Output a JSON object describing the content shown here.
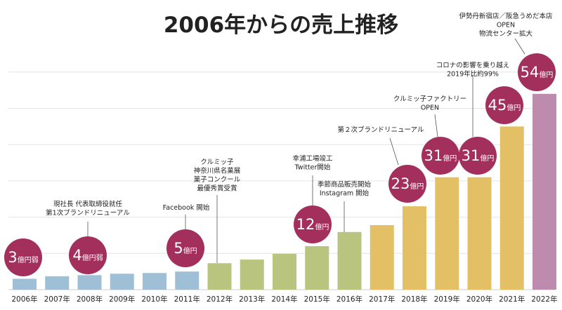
{
  "chart_data": {
    "type": "bar",
    "title": "2006年からの売上推移",
    "xlabel": "",
    "ylabel": "",
    "ylim": [
      0,
      60
    ],
    "grid": true,
    "categories": [
      "2006年",
      "2007年",
      "2008年",
      "2009年",
      "2010年",
      "2011年",
      "2012年",
      "2013年",
      "2014年",
      "2015年",
      "2016年",
      "2017年",
      "2018年",
      "2019年",
      "2020年",
      "2021年",
      "2022年"
    ],
    "values": [
      3,
      3.7,
      4,
      4.4,
      4.6,
      5,
      7.3,
      8.3,
      9.9,
      12,
      15.9,
      17.8,
      23,
      31,
      31,
      45,
      54
    ],
    "bar_colors": [
      "#9ebfd5",
      "#9ebfd5",
      "#9ebfd5",
      "#9ebfd5",
      "#9ebfd5",
      "#9ebfd5",
      "#b9c47f",
      "#b9c47f",
      "#b9c47f",
      "#b9c47f",
      "#b9c47f",
      "#e3c066",
      "#e3c066",
      "#e3c066",
      "#e3c066",
      "#e3c066",
      "#bd8bad"
    ],
    "badge_color": "#a32f5d",
    "badges": [
      {
        "index": 0,
        "num": "3",
        "unit": "億円弱"
      },
      {
        "index": 2,
        "num": "4",
        "unit": "億円弱"
      },
      {
        "index": 5,
        "num": "5",
        "unit": "億円"
      },
      {
        "index": 9,
        "num": "12",
        "unit": "億円"
      },
      {
        "index": 12,
        "num": "23",
        "unit": "億円"
      },
      {
        "index": 13,
        "num": "31",
        "unit": "億円"
      },
      {
        "index": 14,
        "num": "31",
        "unit": "億円"
      },
      {
        "index": 15,
        "num": "45",
        "unit": "億円"
      },
      {
        "index": 16,
        "num": "54",
        "unit": "億円"
      }
    ],
    "annotations": [
      {
        "index": 2,
        "lines": [
          "現社長 代表取締役就任",
          "第1次ブランドリニューアル"
        ]
      },
      {
        "index": 5,
        "lines": [
          "Facebook 開始"
        ]
      },
      {
        "index": 6,
        "lines": [
          "クルミッ子",
          "神奈川県名菓展",
          "菓子コンクール",
          "最優秀賞受賞"
        ]
      },
      {
        "index": 9,
        "lines": [
          "幸浦工場竣工",
          "Twitter開始"
        ]
      },
      {
        "index": 10,
        "lines": [
          "季節商品販売開始",
          "Instagram 開始"
        ]
      },
      {
        "index": 12,
        "lines": [
          "第２次ブランドリニューアル"
        ]
      },
      {
        "index": 13,
        "lines": [
          "クルミッ子ファクトリー",
          "OPEN"
        ]
      },
      {
        "index": 14,
        "lines": [
          "コロナの影響を乗り越え",
          "2019年比約99%"
        ]
      },
      {
        "index": 16,
        "lines": [
          "伊勢丹新宿店／阪急うめだ本店",
          "OPEN",
          "物流センター拡大"
        ]
      }
    ]
  }
}
